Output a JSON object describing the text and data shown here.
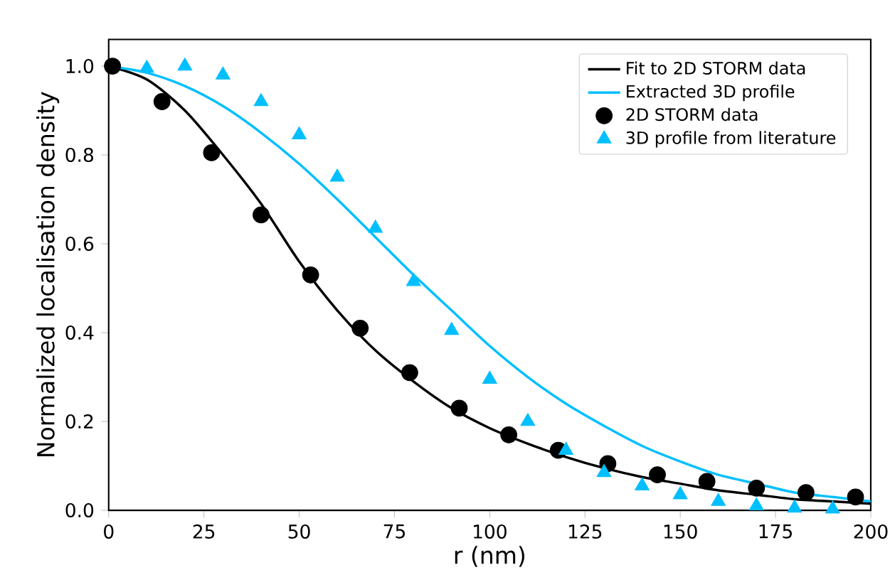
{
  "chart_data": {
    "type": "line",
    "xlabel": "r (nm)",
    "ylabel": "Normalized localisation density",
    "xlim": [
      0,
      200
    ],
    "ylim": [
      0,
      1.06
    ],
    "xticks": [
      0,
      25,
      50,
      75,
      100,
      125,
      150,
      175,
      200
    ],
    "yticks": [
      {
        "value": 0,
        "label": "0.0"
      },
      {
        "value": 0.2,
        "label": "0.2"
      },
      {
        "value": 0.4,
        "label": "0.4"
      },
      {
        "value": 0.6,
        "label": "0.6"
      },
      {
        "value": 0.8,
        "label": "0.8"
      },
      {
        "value": 1,
        "label": "1.0"
      }
    ],
    "legend": "top right",
    "series": [
      {
        "name": "Fit to 2D STORM data",
        "color": "#000000",
        "marker": "none",
        "x": [
          0,
          10,
          20,
          30,
          40,
          50,
          60,
          70,
          80,
          90,
          100,
          110,
          120,
          130,
          140,
          150,
          160,
          170,
          180,
          190,
          200
        ],
        "values": [
          1.0,
          0.97,
          0.9,
          0.8,
          0.69,
          0.56,
          0.45,
          0.36,
          0.29,
          0.23,
          0.185,
          0.15,
          0.12,
          0.095,
          0.075,
          0.06,
          0.045,
          0.035,
          0.025,
          0.02,
          0.015
        ]
      },
      {
        "name": "Extracted 3D profile",
        "color": "#00bfff",
        "marker": "none",
        "x": [
          0,
          10,
          20,
          30,
          40,
          50,
          60,
          70,
          80,
          90,
          100,
          110,
          120,
          130,
          140,
          150,
          160,
          170,
          180,
          190,
          200
        ],
        "values": [
          1.0,
          0.985,
          0.955,
          0.91,
          0.85,
          0.78,
          0.7,
          0.615,
          0.53,
          0.45,
          0.37,
          0.3,
          0.24,
          0.19,
          0.145,
          0.11,
          0.08,
          0.06,
          0.04,
          0.03,
          0.02
        ]
      },
      {
        "name": "2D STORM data",
        "type": "scatter",
        "color": "#000000",
        "marker": "circle",
        "x": [
          1,
          14,
          27,
          40,
          53,
          66,
          79,
          92,
          105,
          118,
          131,
          144,
          157,
          170,
          183,
          196
        ],
        "values": [
          1.0,
          0.92,
          0.805,
          0.665,
          0.53,
          0.41,
          0.31,
          0.23,
          0.17,
          0.135,
          0.105,
          0.08,
          0.065,
          0.05,
          0.04,
          0.03
        ]
      },
      {
        "name": "3D profile from literature",
        "type": "scatter",
        "color": "#00bfff",
        "marker": "triangle",
        "x": [
          10,
          20,
          30,
          40,
          50,
          60,
          70,
          80,
          90,
          100,
          110,
          120,
          130,
          140,
          150,
          160,
          170,
          180,
          190
        ],
        "values": [
          0.995,
          1.0,
          0.98,
          0.92,
          0.845,
          0.75,
          0.635,
          0.515,
          0.405,
          0.295,
          0.2,
          0.135,
          0.085,
          0.055,
          0.035,
          0.02,
          0.01,
          0.005,
          0.003
        ]
      }
    ]
  }
}
